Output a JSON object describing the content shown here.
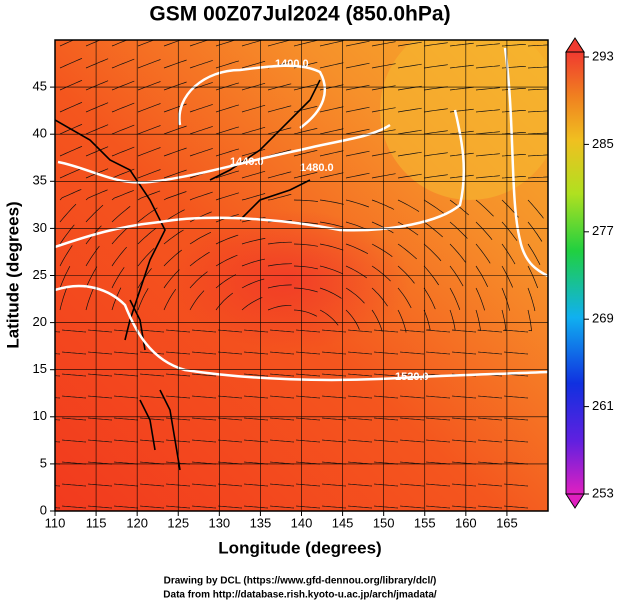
{
  "chart_data": {
    "type": "map",
    "title": "GSM 00Z07Jul2024 (850.0hPa)",
    "x_label": "Longitude (degrees)",
    "y_label": "Latitude  (degrees)",
    "xlim": [
      110,
      170
    ],
    "xticks": [
      110,
      115,
      120,
      125,
      130,
      135,
      140,
      145,
      150,
      155,
      160,
      165
    ],
    "ylim": [
      0,
      50
    ],
    "yticks": [
      0,
      5,
      10,
      15,
      20,
      25,
      30,
      35,
      40,
      45
    ],
    "grid": true,
    "clim": [
      253,
      293
    ],
    "cticks": [
      253,
      261,
      269,
      277,
      285,
      293
    ],
    "contours": [
      {
        "value": 1400,
        "label": "1400.0"
      },
      {
        "value": 1440,
        "label": "1440.0"
      },
      {
        "value": 1480,
        "label": "1480.0"
      },
      {
        "value": 1520,
        "label": "1520.0"
      }
    ],
    "credits": [
      "Drawing by DCL (https://www.gfd-dennou.org/library/dcl/)",
      "Data from http://database.rish.kyoto-u.ac.jp/arch/jmadata/"
    ]
  }
}
